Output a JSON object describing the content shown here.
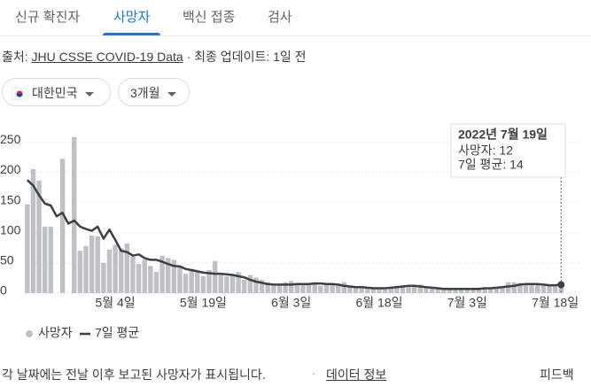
{
  "tabs": [
    "신규 확진자",
    "사망자",
    "백신 접종",
    "검사"
  ],
  "source": {
    "prefix": "출처:",
    "link": "JHU CSSE COVID-19 Data",
    "updated": "· 최종 업데이트: 1일 전"
  },
  "filters": [
    "대한민국",
    "3개월"
  ],
  "footer": {
    "note": "각 날짜에는 전날 이후 보고된 사망자가 표시됩니다.",
    "sep": "·",
    "link": "데이터 정보",
    "feedback": "피드백"
  },
  "tooltip": {
    "date": "2022년 7월 19일",
    "lines": [
      "사망자: 12",
      "7일 평균: 14"
    ]
  },
  "chart_data": {
    "type": "bar_line",
    "categories": [
      null,
      null,
      null,
      null,
      null,
      null,
      null,
      null,
      null,
      null,
      null,
      null,
      null,
      null,
      null,
      "5월 4일",
      null,
      null,
      null,
      null,
      null,
      null,
      null,
      null,
      null,
      null,
      null,
      null,
      null,
      null,
      "5월 19일",
      null,
      null,
      null,
      null,
      null,
      null,
      null,
      null,
      null,
      null,
      null,
      null,
      null,
      null,
      "6월 3일",
      null,
      null,
      null,
      null,
      null,
      null,
      null,
      null,
      null,
      null,
      null,
      null,
      null,
      null,
      "6월 18일",
      null,
      null,
      null,
      null,
      null,
      null,
      null,
      null,
      null,
      null,
      null,
      null,
      null,
      null,
      "7월 3일",
      null,
      null,
      null,
      null,
      null,
      null,
      null,
      null,
      null,
      null,
      null,
      null,
      null,
      null,
      "7월 18일",
      null
    ],
    "series": [
      {
        "name": "사망자",
        "color": "#bdc1c6",
        "kind": "bar",
        "values": [
          147,
          205,
          186,
          110,
          110,
          0,
          222,
          0,
          258,
          70,
          78,
          95,
          94,
          50,
          72,
          80,
          74,
          82,
          60,
          48,
          55,
          45,
          35,
          62,
          58,
          55,
          46,
          32,
          40,
          35,
          28,
          38,
          53,
          30,
          28,
          32,
          35,
          22,
          30,
          26,
          22,
          18,
          12,
          14,
          18,
          20,
          14,
          15,
          16,
          18,
          12,
          14,
          15,
          16,
          18,
          12,
          10,
          9,
          8,
          10,
          8,
          6,
          9,
          12,
          11,
          10,
          12,
          14,
          10,
          8,
          7,
          6,
          8,
          7,
          6,
          7,
          8,
          9,
          8,
          7,
          10,
          12,
          18,
          18,
          17,
          15,
          16,
          14,
          12,
          13,
          12,
          12
        ]
      },
      {
        "name": "7일 평균",
        "color": "#3c4043",
        "kind": "line",
        "values": [
          187,
          178,
          162,
          148,
          145,
          127,
          133,
          115,
          120,
          110,
          106,
          103,
          110,
          90,
          105,
          88,
          70,
          68,
          62,
          64,
          58,
          55,
          55,
          52,
          48,
          45,
          44,
          40,
          38,
          36,
          34,
          33,
          32,
          32,
          31,
          30,
          28,
          26,
          22,
          19,
          17,
          15,
          14,
          14,
          14,
          14,
          15,
          15,
          15,
          16,
          16,
          15,
          15,
          14,
          12,
          11,
          10,
          10,
          9,
          8,
          8,
          8,
          9,
          10,
          11,
          12,
          12,
          11,
          10,
          9,
          8,
          7,
          7,
          7,
          7,
          7,
          7,
          7,
          8,
          8,
          9,
          10,
          11,
          12,
          14,
          15,
          15,
          15,
          14,
          13,
          13,
          14
        ]
      }
    ],
    "ylim": [
      0,
      265
    ],
    "yticks": [
      0,
      50,
      100,
      150,
      200,
      250
    ],
    "grid": true
  }
}
